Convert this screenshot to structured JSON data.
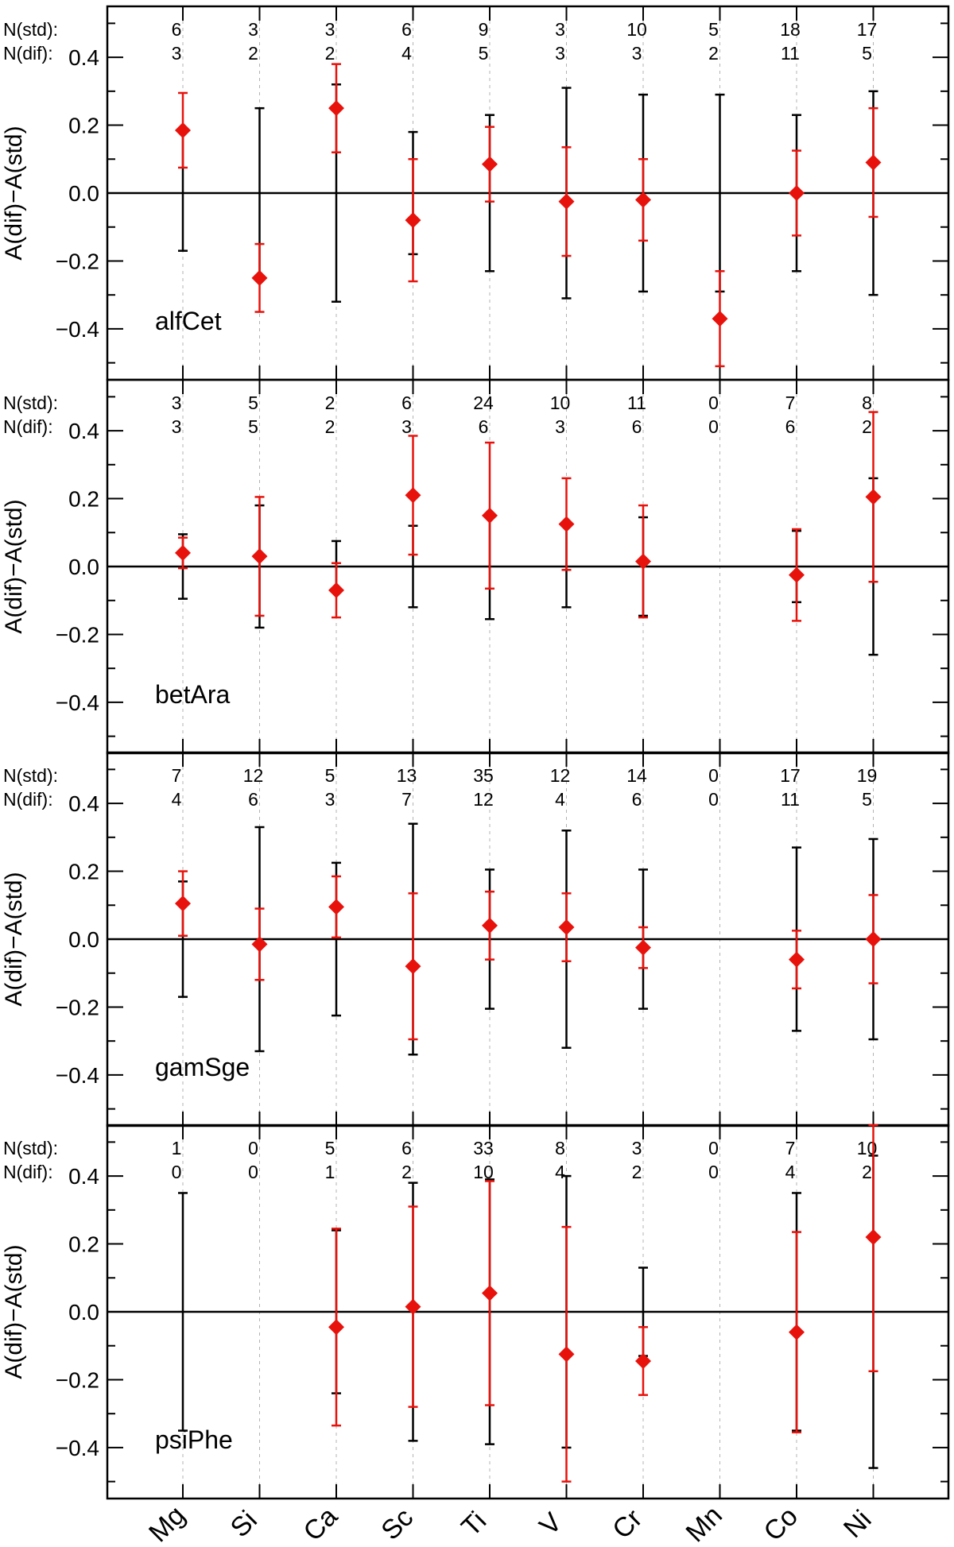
{
  "colors": {
    "dif": "#e8120c",
    "std": "#000000",
    "vgrid": "#b3b3b3"
  },
  "chart_data": {
    "type": "scatter",
    "categories": [
      "Mg",
      "Si",
      "Ca",
      "Sc",
      "Ti",
      "V",
      "Cr",
      "Mn",
      "Co",
      "Ni"
    ],
    "ylabel": "A(dif)−A(std)",
    "ylim": [
      -0.55,
      0.55
    ],
    "yticks": [
      -0.4,
      -0.2,
      0.0,
      0.2,
      0.4
    ],
    "ytick_labels": [
      "−0.4",
      "−0.2",
      "0.0",
      "0.2",
      "0.4"
    ],
    "row_labels": {
      "std": "N(std):",
      "dif": "N(dif):"
    },
    "zero_line": true,
    "panels": [
      {
        "star": "alfCet",
        "n_std": [
          "6",
          "3",
          "3",
          "6",
          "9",
          "3",
          "10",
          "5",
          "18",
          "17"
        ],
        "n_dif": [
          "3",
          "2",
          "2",
          "4",
          "5",
          "3",
          "3",
          "2",
          "11",
          "5"
        ],
        "values": [
          0.185,
          -0.25,
          0.25,
          -0.08,
          0.085,
          -0.025,
          -0.02,
          -0.37,
          0.0,
          0.09
        ],
        "dif_err": [
          0.11,
          0.1,
          0.13,
          0.18,
          0.11,
          0.16,
          0.12,
          0.14,
          0.125,
          0.16
        ],
        "std_err": [
          [
            -0.17,
            0.185
          ],
          [
            -0.25,
            0.25
          ],
          [
            -0.32,
            0.32
          ],
          [
            -0.18,
            0.18
          ],
          [
            -0.23,
            0.23
          ],
          [
            -0.31,
            0.31
          ],
          [
            -0.29,
            0.29
          ],
          [
            -0.29,
            0.29
          ],
          [
            -0.23,
            0.23
          ],
          [
            -0.3,
            0.3
          ]
        ]
      },
      {
        "star": "betAra",
        "n_std": [
          "3",
          "5",
          "2",
          "6",
          "24",
          "10",
          "11",
          "0",
          "7",
          "8"
        ],
        "n_dif": [
          "3",
          "5",
          "2",
          "3",
          "6",
          "3",
          "6",
          "0",
          "6",
          "2"
        ],
        "values": [
          0.04,
          0.03,
          -0.07,
          0.21,
          0.15,
          0.125,
          0.015,
          null,
          -0.025,
          0.205
        ],
        "dif_err": [
          0.045,
          0.175,
          0.08,
          0.175,
          0.215,
          0.135,
          0.165,
          null,
          0.135,
          0.25
        ],
        "std_err": [
          [
            -0.095,
            0.095
          ],
          [
            -0.18,
            0.18
          ],
          [
            -0.075,
            0.075
          ],
          [
            -0.12,
            0.12
          ],
          [
            -0.155,
            0.155
          ],
          [
            -0.12,
            0.12
          ],
          [
            -0.145,
            0.145
          ],
          null,
          [
            -0.105,
            0.105
          ],
          [
            -0.26,
            0.26
          ]
        ]
      },
      {
        "star": "gamSge",
        "n_std": [
          "7",
          "12",
          "5",
          "13",
          "35",
          "12",
          "14",
          "0",
          "17",
          "19"
        ],
        "n_dif": [
          "4",
          "6",
          "3",
          "7",
          "12",
          "4",
          "6",
          "0",
          "11",
          "5"
        ],
        "values": [
          0.105,
          -0.015,
          0.095,
          -0.08,
          0.04,
          0.035,
          -0.025,
          null,
          -0.06,
          0.0
        ],
        "dif_err": [
          0.095,
          0.105,
          0.09,
          0.215,
          0.1,
          0.1,
          0.06,
          null,
          0.085,
          0.13
        ],
        "std_err": [
          [
            -0.17,
            0.17
          ],
          [
            -0.33,
            0.33
          ],
          [
            -0.225,
            0.225
          ],
          [
            -0.34,
            0.34
          ],
          [
            -0.205,
            0.205
          ],
          [
            -0.32,
            0.32
          ],
          [
            -0.205,
            0.205
          ],
          null,
          [
            -0.27,
            0.27
          ],
          [
            -0.295,
            0.295
          ]
        ]
      },
      {
        "star": "psiPhe",
        "n_std": [
          "1",
          "0",
          "5",
          "6",
          "33",
          "8",
          "3",
          "0",
          "7",
          "10"
        ],
        "n_dif": [
          "0",
          "0",
          "1",
          "2",
          "10",
          "4",
          "2",
          "0",
          "4",
          "2"
        ],
        "values": [
          null,
          null,
          -0.045,
          0.015,
          0.055,
          -0.125,
          -0.145,
          null,
          -0.06,
          0.22
        ],
        "dif_err": [
          null,
          null,
          0.29,
          0.295,
          0.33,
          0.375,
          0.1,
          null,
          0.295,
          0.395
        ],
        "std_err": [
          [
            -0.35,
            0.35
          ],
          null,
          [
            -0.24,
            0.24
          ],
          [
            -0.38,
            0.38
          ],
          [
            -0.39,
            0.39
          ],
          [
            -0.4,
            0.4
          ],
          [
            -0.13,
            0.13
          ],
          null,
          [
            -0.35,
            0.35
          ],
          [
            -0.46,
            0.46
          ]
        ]
      }
    ]
  }
}
